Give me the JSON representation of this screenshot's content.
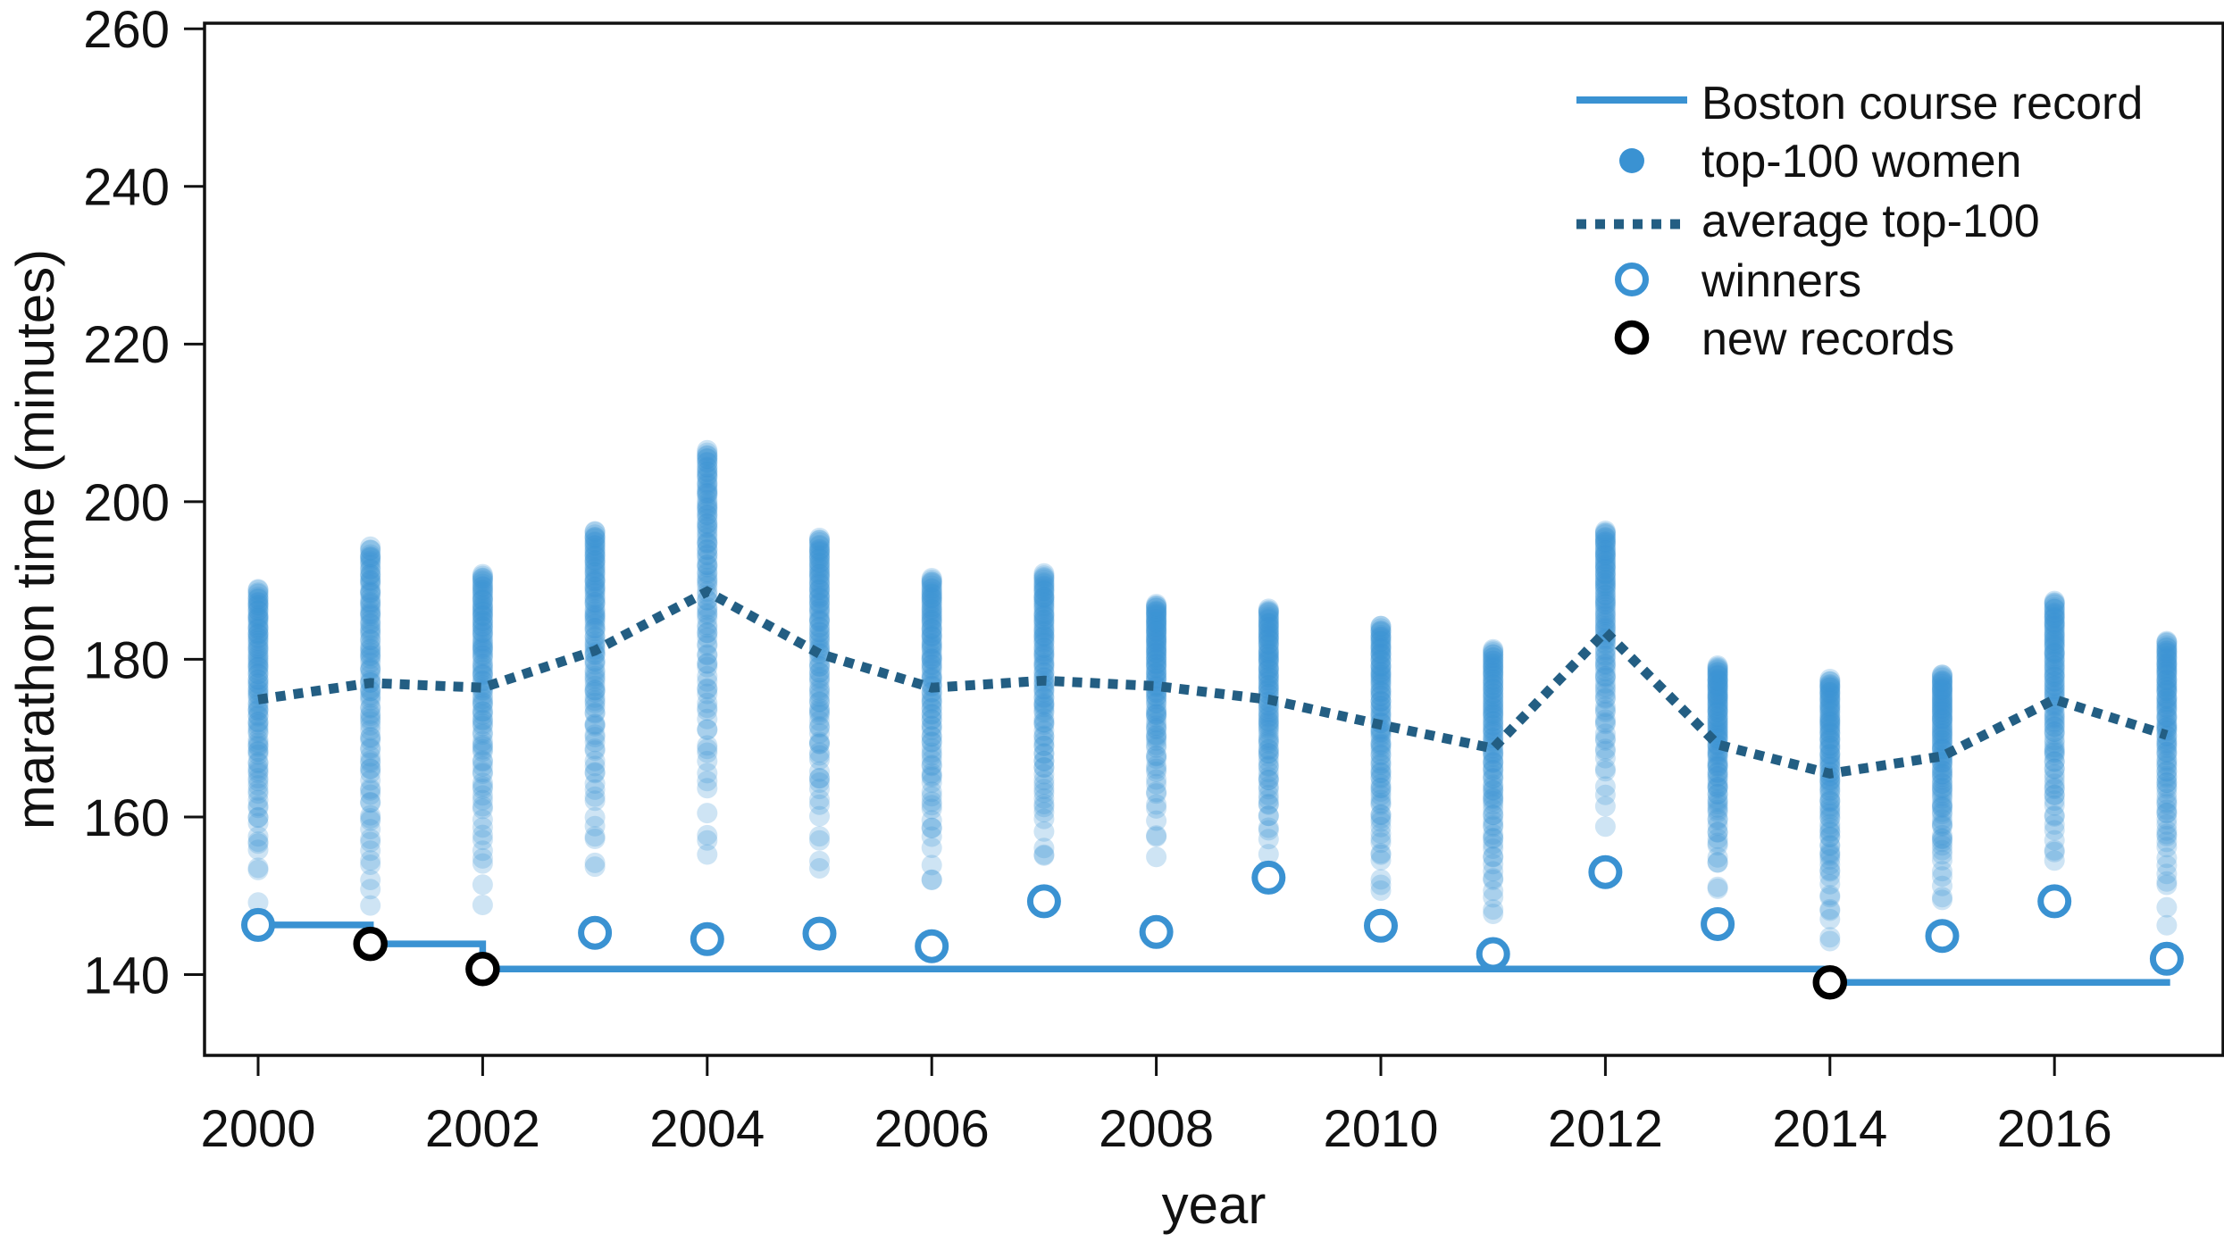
{
  "chart_data": {
    "type": "scatter",
    "title": "",
    "xlabel": "year",
    "ylabel": "marathon time (minutes)",
    "x_domain": [
      1999.5,
      2017.6
    ],
    "y_domain": [
      129.8,
      260.7
    ],
    "xticks": [
      2000,
      2002,
      2004,
      2006,
      2008,
      2010,
      2012,
      2014,
      2016
    ],
    "xtick_labels": [
      "2000",
      "2002",
      "2004",
      "2006",
      "2008",
      "2010",
      "2012",
      "2014",
      "2016"
    ],
    "yticks": [
      140,
      160,
      180,
      200,
      220,
      240,
      260
    ],
    "ytick_labels": [
      "140",
      "160",
      "180",
      "200",
      "220",
      "240",
      "260"
    ],
    "grid": false,
    "legend_position": "upper-right-inside",
    "legend_labels": [
      "Boston course record",
      "top-100 women",
      "average top-100",
      "winners",
      "new records"
    ],
    "colors": {
      "blue": "#3a92d2",
      "dot_fill": "#3a92d2",
      "dot_opacity": 0.25,
      "average_line": "#235e83",
      "record_circle": "#000000",
      "axis": "#111111"
    },
    "years": [
      2000,
      2001,
      2002,
      2003,
      2004,
      2005,
      2006,
      2007,
      2008,
      2009,
      2010,
      2011,
      2012,
      2013,
      2014,
      2015,
      2016,
      2017
    ],
    "series": {
      "winners": [
        146.3,
        143.9,
        140.7,
        145.3,
        144.5,
        145.2,
        143.6,
        149.3,
        145.4,
        152.3,
        146.2,
        142.6,
        153.0,
        146.4,
        139.0,
        144.9,
        149.3,
        142.0
      ],
      "average_top100": [
        174.9,
        177.0,
        176.4,
        181.1,
        188.6,
        180.7,
        176.4,
        177.3,
        176.6,
        174.9,
        171.7,
        168.7,
        183.5,
        169.2,
        165.5,
        167.7,
        174.9,
        170.4
      ],
      "top100_slowest": [
        188.9,
        194.3,
        190.8,
        196.3,
        206.6,
        195.4,
        190.3,
        190.9,
        187.0,
        186.4,
        184.3,
        181.3,
        196.3,
        179.2,
        177.5,
        178.1,
        187.4,
        182.3
      ],
      "top100_count_per_year": 100,
      "new_records": [
        {
          "year": 2001,
          "value": 143.9
        },
        {
          "year": 2002,
          "value": 140.7
        },
        {
          "year": 2014,
          "value": 139.0
        }
      ],
      "course_record_steps": [
        {
          "start_year": 2000,
          "end_year": 2001,
          "value": 146.3
        },
        {
          "start_year": 2001,
          "end_year": 2002,
          "value": 143.9
        },
        {
          "start_year": 2002,
          "end_year": 2014,
          "value": 140.7
        },
        {
          "start_year": 2014,
          "end_year": 2017.03,
          "value": 139.0
        }
      ]
    }
  }
}
